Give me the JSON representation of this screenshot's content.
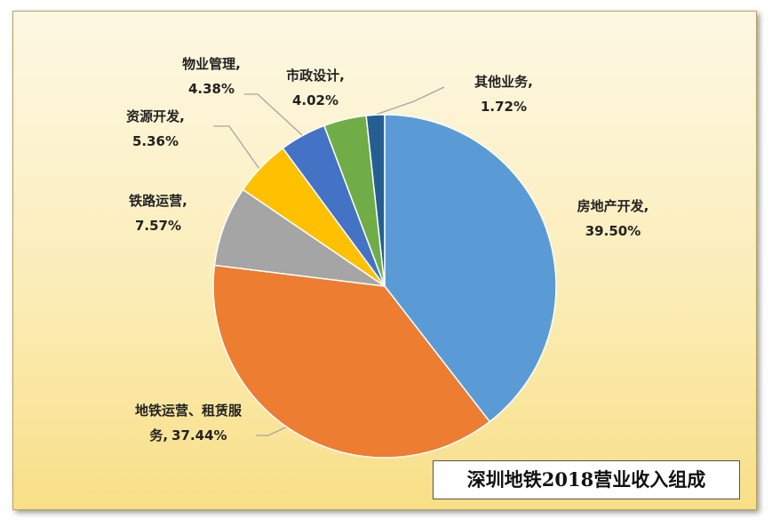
{
  "chart_data": {
    "type": "pie",
    "title": "深圳地铁2018营业收入组成",
    "categories": [
      "房地产开发,",
      "地铁运营、租赁服务,",
      "铁路运营,",
      "资源开发,",
      "物业管理,",
      "市政设计,",
      "其他业务,"
    ],
    "values": [
      39.5,
      37.44,
      7.57,
      5.36,
      4.38,
      4.02,
      1.72
    ],
    "value_labels": [
      "39.50%",
      "37.44%",
      "7.57%",
      "5.36%",
      "4.38%",
      "4.02%",
      "1.72%"
    ],
    "colors": [
      "#5b9bd5",
      "#ed7d31",
      "#a5a5a5",
      "#ffc000",
      "#4472c4",
      "#70ad47",
      "#255e91"
    ]
  }
}
